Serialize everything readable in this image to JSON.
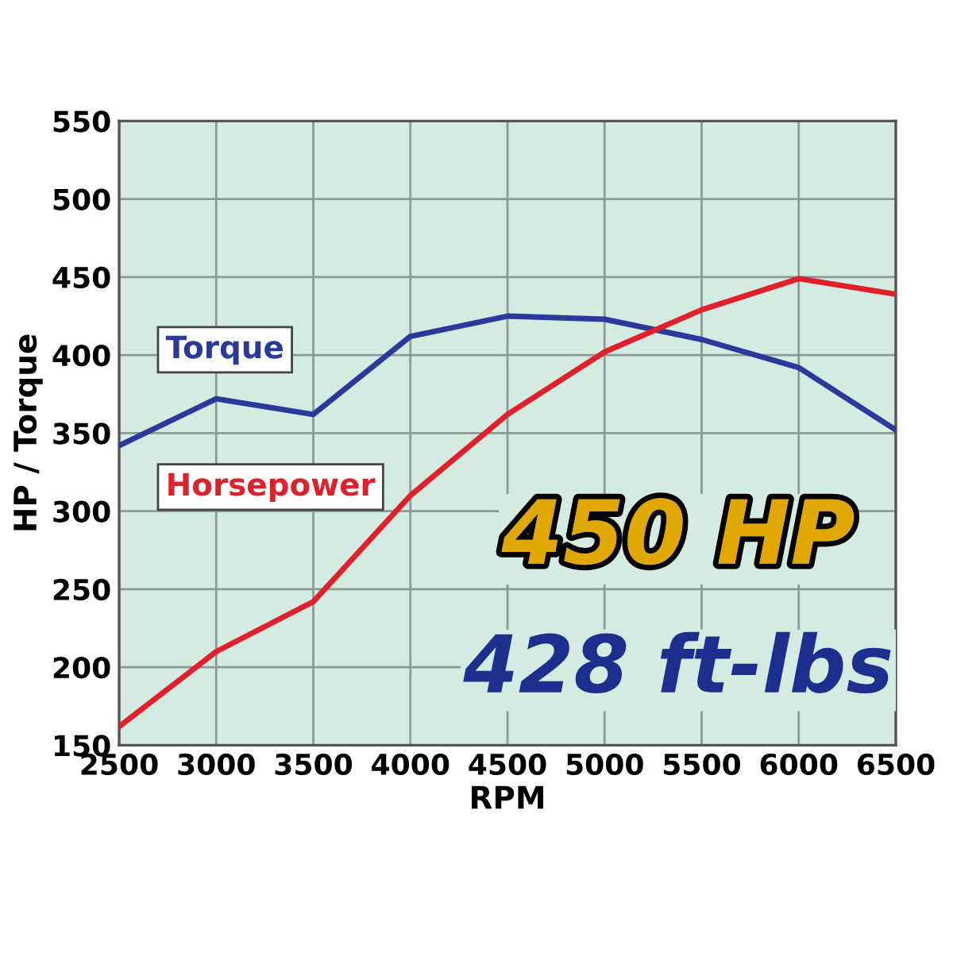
{
  "chart_data": {
    "type": "line",
    "xlabel": "RPM",
    "ylabel": "HP / Torque",
    "x": [
      2500,
      3000,
      3500,
      4000,
      4500,
      5000,
      5500,
      6000,
      6500
    ],
    "series": [
      {
        "name": "Torque",
        "color": "#2b3a9a",
        "values": [
          342,
          372,
          362,
          412,
          425,
          423,
          410,
          392,
          352
        ]
      },
      {
        "name": "Horsepower",
        "color": "#e0202a",
        "values": [
          162,
          210,
          242,
          310,
          362,
          402,
          429,
          449,
          439
        ]
      }
    ],
    "xlim": [
      2500,
      6500
    ],
    "xticks": [
      2500,
      3000,
      3500,
      4000,
      4500,
      5000,
      5500,
      6000,
      6500
    ],
    "ylim": [
      150,
      550
    ],
    "yticks": [
      150,
      200,
      250,
      300,
      350,
      400,
      450,
      500,
      550
    ],
    "grid": true,
    "marker": "none",
    "line_style": "solid",
    "annotations": [
      "450 HP",
      "428 ft-lbs"
    ]
  }
}
